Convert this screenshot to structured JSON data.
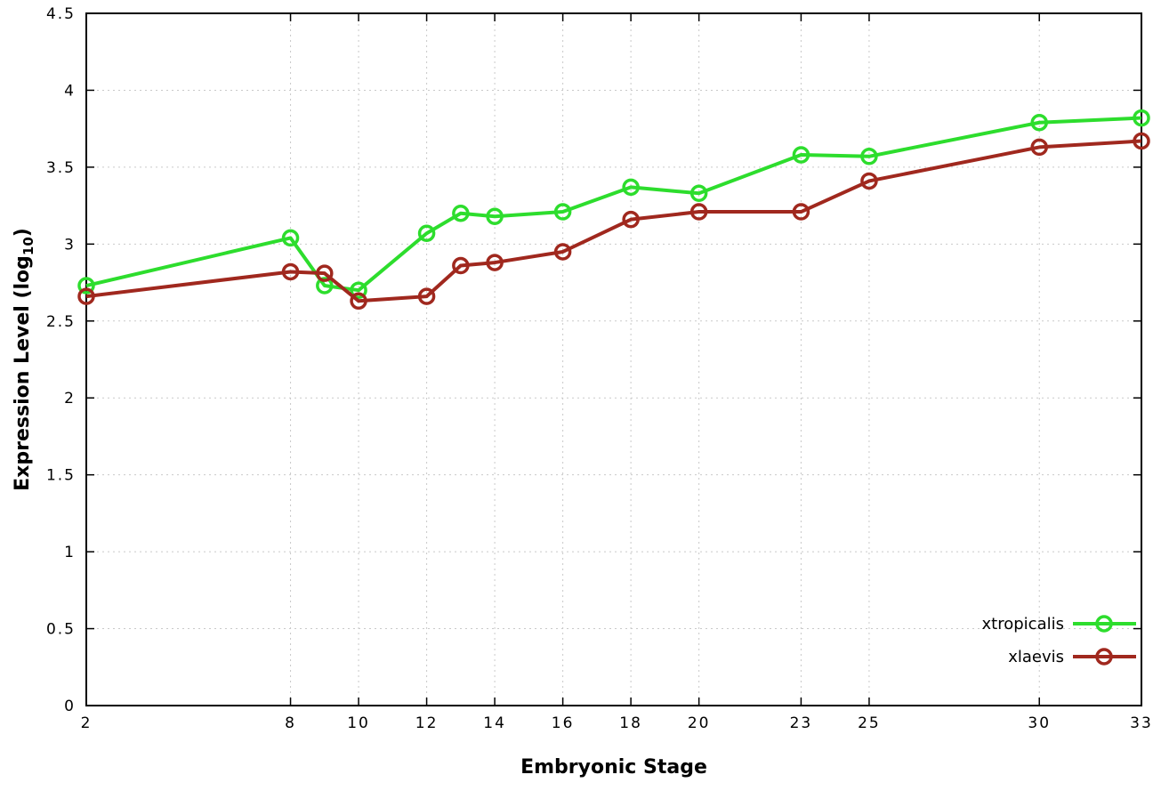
{
  "chart_data": {
    "type": "line",
    "title": "",
    "xlabel": "Embryonic Stage",
    "ylabel": "Expression Level (log10)",
    "ylabel_parts": {
      "main": "Expression Level (log",
      "sub": "10",
      "end": ")"
    },
    "x": [
      2,
      8,
      9,
      10,
      12,
      13,
      14,
      16,
      18,
      20,
      23,
      25,
      30,
      33
    ],
    "xticks": [
      2,
      8,
      10,
      12,
      14,
      16,
      18,
      20,
      23,
      25,
      30,
      33
    ],
    "yticks": [
      0,
      0.5,
      1,
      1.5,
      2,
      2.5,
      3,
      3.5,
      4,
      4.5
    ],
    "xlim": [
      2,
      33
    ],
    "ylim": [
      0,
      4.5
    ],
    "grid": true,
    "legend_position": "bottom-right",
    "series": [
      {
        "name": "xtropicalis",
        "color": "#2ddd2d",
        "values": [
          2.73,
          3.04,
          2.73,
          2.7,
          3.07,
          3.2,
          3.18,
          3.21,
          3.37,
          3.33,
          3.58,
          3.57,
          3.79,
          3.82
        ]
      },
      {
        "name": "xlaevis",
        "color": "#a0281e",
        "values": [
          2.66,
          2.82,
          2.81,
          2.63,
          2.66,
          2.86,
          2.88,
          2.95,
          3.16,
          3.21,
          3.21,
          3.41,
          3.63,
          3.67
        ]
      }
    ]
  }
}
